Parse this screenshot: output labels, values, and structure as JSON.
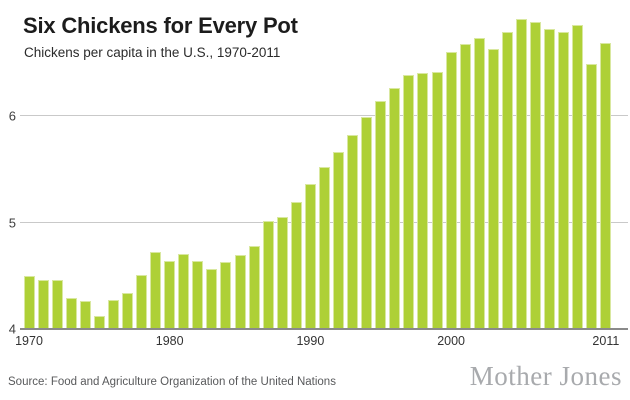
{
  "header": {
    "title": "Six Chickens for Every Pot",
    "subtitle": "Chickens per capita in the U.S., 1970-2011"
  },
  "chart_data": {
    "type": "bar",
    "title": "Six Chickens for Every Pot",
    "subtitle": "Chickens per capita in the U.S., 1970-2011",
    "xlabel": "",
    "ylabel": "Chickens per capita",
    "ylim": [
      4,
      7
    ],
    "yticks": [
      4,
      5,
      6
    ],
    "xticks": [
      1970,
      1980,
      1990,
      2000,
      2011
    ],
    "grid": "horizontal",
    "legend": "none",
    "bar_color": "#aed036",
    "x": [
      1970,
      1971,
      1972,
      1973,
      1974,
      1975,
      1976,
      1977,
      1978,
      1979,
      1980,
      1981,
      1982,
      1983,
      1984,
      1985,
      1986,
      1987,
      1988,
      1989,
      1990,
      1991,
      1992,
      1993,
      1994,
      1995,
      1996,
      1997,
      1998,
      1999,
      2000,
      2001,
      2002,
      2003,
      2004,
      2005,
      2006,
      2007,
      2008,
      2009,
      2010,
      2011
    ],
    "values": [
      4.49,
      4.45,
      4.45,
      4.28,
      4.25,
      4.11,
      4.26,
      4.33,
      4.5,
      4.71,
      4.63,
      4.7,
      4.63,
      4.55,
      4.62,
      4.69,
      4.77,
      5.01,
      5.04,
      5.18,
      5.35,
      5.51,
      5.65,
      5.81,
      5.98,
      6.13,
      6.26,
      6.38,
      6.4,
      6.41,
      6.59,
      6.67,
      6.73,
      6.62,
      6.78,
      6.9,
      6.88,
      6.81,
      6.78,
      6.85,
      6.48,
      6.68
    ]
  },
  "footer": {
    "source": "Source: Food and Agriculture Organization of the United Nations",
    "logo": "Mother Jones"
  },
  "colors": {
    "bar_fill": "#aed036",
    "bar_edge": "#d9e8a0",
    "gridline": "#c9c9c9",
    "axis_line": "#8a8a8a",
    "title_text": "#1c1c1c",
    "logo_text": "#a8aaad"
  }
}
